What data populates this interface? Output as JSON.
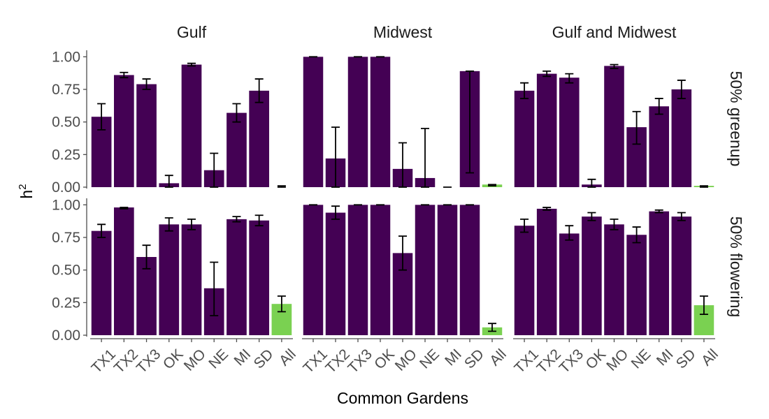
{
  "chart_data": {
    "type": "bar",
    "xlabel": "Common Gardens",
    "ylabel": "h",
    "ylabel_superscript": "2",
    "ylim": [
      0,
      1.05
    ],
    "y_ticks": [
      "0.00",
      "0.25",
      "0.50",
      "0.75",
      "1.00"
    ],
    "y_tick_values": [
      0,
      0.25,
      0.5,
      0.75,
      1.0
    ],
    "categories": [
      "TX1",
      "TX2",
      "TX3",
      "OK",
      "MO",
      "NE",
      "MI",
      "SD",
      "All"
    ],
    "columns": [
      "Gulf",
      "Midwest",
      "Gulf and Midwest"
    ],
    "rows": [
      "50% greenup",
      "50% flowering"
    ],
    "colors": {
      "garden": "#440154",
      "all": "#7AD151"
    },
    "panels": [
      {
        "row": 0,
        "col": 0,
        "values": [
          0.54,
          0.86,
          0.79,
          0.03,
          0.94,
          0.13,
          0.57,
          0.74,
          0.0
        ],
        "lower": [
          0.44,
          0.84,
          0.75,
          0.0,
          0.93,
          0.0,
          0.5,
          0.65,
          0.0
        ],
        "upper": [
          0.64,
          0.88,
          0.83,
          0.09,
          0.95,
          0.26,
          0.64,
          0.83,
          0.01
        ]
      },
      {
        "row": 0,
        "col": 1,
        "values": [
          1.0,
          0.22,
          1.0,
          1.0,
          0.14,
          0.07,
          0.0,
          0.89,
          0.02
        ],
        "lower": [
          1.0,
          0.0,
          1.0,
          1.0,
          0.0,
          0.0,
          0.0,
          0.11,
          0.01
        ],
        "upper": [
          1.0,
          0.46,
          1.0,
          1.0,
          0.34,
          0.45,
          0.0,
          0.89,
          0.02
        ]
      },
      {
        "row": 0,
        "col": 2,
        "values": [
          0.74,
          0.87,
          0.84,
          0.02,
          0.93,
          0.46,
          0.62,
          0.75,
          0.01
        ],
        "lower": [
          0.68,
          0.85,
          0.8,
          0.0,
          0.91,
          0.33,
          0.56,
          0.68,
          0.0
        ],
        "upper": [
          0.8,
          0.89,
          0.87,
          0.06,
          0.94,
          0.58,
          0.68,
          0.82,
          0.01
        ]
      },
      {
        "row": 1,
        "col": 0,
        "values": [
          0.8,
          0.98,
          0.6,
          0.85,
          0.85,
          0.36,
          0.89,
          0.88,
          0.24
        ],
        "lower": [
          0.75,
          0.97,
          0.51,
          0.8,
          0.81,
          0.15,
          0.87,
          0.84,
          0.18
        ],
        "upper": [
          0.85,
          0.98,
          0.69,
          0.9,
          0.89,
          0.56,
          0.91,
          0.92,
          0.3
        ]
      },
      {
        "row": 1,
        "col": 1,
        "values": [
          1.0,
          0.94,
          1.0,
          1.0,
          0.63,
          1.0,
          1.0,
          1.0,
          0.06
        ],
        "lower": [
          1.0,
          0.89,
          1.0,
          1.0,
          0.5,
          1.0,
          1.0,
          1.0,
          0.03
        ],
        "upper": [
          1.0,
          0.99,
          1.0,
          1.0,
          0.76,
          1.0,
          1.0,
          1.0,
          0.09
        ]
      },
      {
        "row": 1,
        "col": 2,
        "values": [
          0.84,
          0.97,
          0.78,
          0.91,
          0.85,
          0.77,
          0.95,
          0.91,
          0.23
        ],
        "lower": [
          0.79,
          0.96,
          0.73,
          0.88,
          0.81,
          0.71,
          0.94,
          0.88,
          0.16
        ],
        "upper": [
          0.89,
          0.98,
          0.84,
          0.94,
          0.89,
          0.83,
          0.96,
          0.94,
          0.3
        ]
      }
    ]
  }
}
